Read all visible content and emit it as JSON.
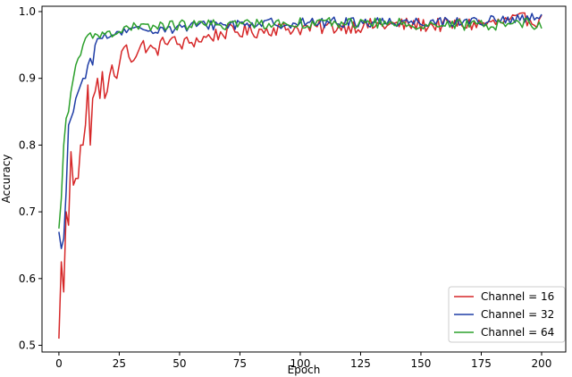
{
  "chart_data": {
    "type": "line",
    "title": "",
    "xlabel": "Epoch",
    "ylabel": "Accuracy",
    "xlim": [
      -7,
      210
    ],
    "ylim": [
      0.49,
      1.008
    ],
    "xticks": [
      0,
      25,
      50,
      75,
      100,
      125,
      150,
      175,
      200
    ],
    "yticks": [
      0.5,
      0.6,
      0.7,
      0.8,
      0.9,
      1.0
    ],
    "ytick_labels": [
      "0.5",
      "0.6",
      "0.7",
      "0.8",
      "0.9",
      "1.0"
    ],
    "grid": false,
    "legend": "bottom-right",
    "series": [
      {
        "name": "Channel = 16",
        "color": "#d62728",
        "keypoints": [
          [
            0,
            0.51
          ],
          [
            1,
            0.625
          ],
          [
            2,
            0.58
          ],
          [
            3,
            0.7
          ],
          [
            4,
            0.68
          ],
          [
            5,
            0.79
          ],
          [
            6,
            0.74
          ],
          [
            7,
            0.75
          ],
          [
            8,
            0.75
          ],
          [
            9,
            0.8
          ],
          [
            10,
            0.8
          ],
          [
            11,
            0.83
          ],
          [
            12,
            0.89
          ],
          [
            13,
            0.8
          ],
          [
            14,
            0.87
          ],
          [
            15,
            0.88
          ],
          [
            16,
            0.9
          ],
          [
            17,
            0.87
          ],
          [
            18,
            0.91
          ],
          [
            19,
            0.87
          ],
          [
            20,
            0.88
          ],
          [
            22,
            0.92
          ],
          [
            24,
            0.9
          ],
          [
            25,
            0.92
          ],
          [
            27,
            0.95
          ],
          [
            30,
            0.93
          ],
          [
            35,
            0.95
          ],
          [
            40,
            0.94
          ],
          [
            45,
            0.96
          ],
          [
            50,
            0.95
          ],
          [
            60,
            0.96
          ],
          [
            70,
            0.97
          ],
          [
            80,
            0.97
          ],
          [
            90,
            0.975
          ],
          [
            100,
            0.975
          ],
          [
            120,
            0.978
          ],
          [
            140,
            0.98
          ],
          [
            160,
            0.98
          ],
          [
            180,
            0.982
          ],
          [
            195,
            0.99
          ],
          [
            200,
            0.985
          ]
        ],
        "noise": 0.011
      },
      {
        "name": "Channel = 32",
        "color": "#1f3da6",
        "keypoints": [
          [
            0,
            0.67
          ],
          [
            1,
            0.645
          ],
          [
            2,
            0.66
          ],
          [
            3,
            0.73
          ],
          [
            4,
            0.83
          ],
          [
            5,
            0.84
          ],
          [
            6,
            0.85
          ],
          [
            7,
            0.87
          ],
          [
            8,
            0.88
          ],
          [
            9,
            0.89
          ],
          [
            10,
            0.9
          ],
          [
            11,
            0.9
          ],
          [
            12,
            0.92
          ],
          [
            13,
            0.93
          ],
          [
            14,
            0.92
          ],
          [
            15,
            0.95
          ],
          [
            17,
            0.96
          ],
          [
            20,
            0.96
          ],
          [
            25,
            0.97
          ],
          [
            30,
            0.97
          ],
          [
            40,
            0.975
          ],
          [
            50,
            0.975
          ],
          [
            60,
            0.98
          ],
          [
            80,
            0.982
          ],
          [
            100,
            0.983
          ],
          [
            120,
            0.984
          ],
          [
            140,
            0.985
          ],
          [
            160,
            0.985
          ],
          [
            180,
            0.986
          ],
          [
            200,
            0.99
          ]
        ],
        "noise": 0.008
      },
      {
        "name": "Channel = 64",
        "color": "#2ca02c",
        "keypoints": [
          [
            0,
            0.675
          ],
          [
            1,
            0.72
          ],
          [
            2,
            0.8
          ],
          [
            3,
            0.84
          ],
          [
            4,
            0.85
          ],
          [
            5,
            0.88
          ],
          [
            6,
            0.9
          ],
          [
            7,
            0.92
          ],
          [
            8,
            0.93
          ],
          [
            9,
            0.935
          ],
          [
            10,
            0.95
          ],
          [
            11,
            0.96
          ],
          [
            12,
            0.965
          ],
          [
            14,
            0.96
          ],
          [
            16,
            0.965
          ],
          [
            20,
            0.97
          ],
          [
            25,
            0.97
          ],
          [
            30,
            0.975
          ],
          [
            40,
            0.978
          ],
          [
            50,
            0.98
          ],
          [
            60,
            0.98
          ],
          [
            80,
            0.982
          ],
          [
            100,
            0.983
          ],
          [
            120,
            0.983
          ],
          [
            140,
            0.982
          ],
          [
            160,
            0.98
          ],
          [
            180,
            0.98
          ],
          [
            195,
            0.985
          ],
          [
            200,
            0.975
          ]
        ],
        "noise": 0.008
      }
    ]
  }
}
